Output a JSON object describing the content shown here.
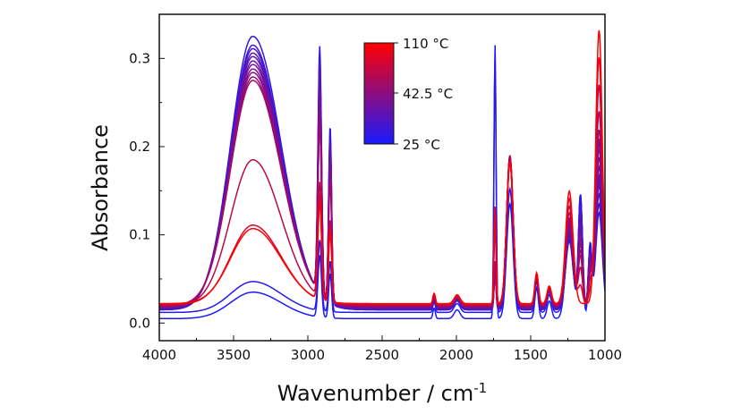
{
  "chart_data": {
    "type": "line",
    "title": "",
    "xlabel": "Wavenumber / cm",
    "xlabel_sup": "-1",
    "ylabel": "Absorbance",
    "xlim": [
      4000,
      1000
    ],
    "ylim": [
      -0.02,
      0.35
    ],
    "x_reversed": true,
    "x_ticks": [
      4000,
      3500,
      3000,
      2500,
      2000,
      1500,
      1000
    ],
    "x_tick_labels": [
      "4000",
      "3500",
      "3000",
      "2500",
      "2000",
      "1500",
      "1000"
    ],
    "y_ticks": [
      0.0,
      0.1,
      0.2,
      0.3
    ],
    "y_tick_labels": [
      "0.0",
      "0.1",
      "0.2",
      "0.3"
    ],
    "grid": false,
    "colorbar": {
      "placement": "top-center",
      "min_label": "25 °C",
      "mid_label": "42.5 °C",
      "max_label": "110 °C",
      "color_low": "#1a1aff",
      "color_high": "#ff0000"
    },
    "series": [
      {
        "temperature_fraction": 0.0,
        "oh_peak": 0.03,
        "ch_peak": 0.07,
        "co_peak": 0.31,
        "amide_peak": 0.13,
        "low_peak": 0.2,
        "baseline": 0.005
      },
      {
        "temperature_fraction": 0.05,
        "oh_peak": 0.035,
        "ch_peak": 0.08,
        "co_peak": 0.29,
        "amide_peak": 0.14,
        "low_peak": 0.15,
        "baseline": 0.012
      },
      {
        "temperature_fraction": 0.1,
        "oh_peak": 0.31,
        "ch_peak": 0.28,
        "co_peak": 0.04,
        "amide_peak": 0.17,
        "low_peak": 0.11,
        "baseline": 0.015
      },
      {
        "temperature_fraction": 0.15,
        "oh_peak": 0.3,
        "ch_peak": 0.27,
        "co_peak": 0.04,
        "amide_peak": 0.17,
        "low_peak": 0.12,
        "baseline": 0.015
      },
      {
        "temperature_fraction": 0.2,
        "oh_peak": 0.295,
        "ch_peak": 0.26,
        "co_peak": 0.04,
        "amide_peak": 0.17,
        "low_peak": 0.13,
        "baseline": 0.016
      },
      {
        "temperature_fraction": 0.25,
        "oh_peak": 0.29,
        "ch_peak": 0.25,
        "co_peak": 0.04,
        "amide_peak": 0.17,
        "low_peak": 0.14,
        "baseline": 0.016
      },
      {
        "temperature_fraction": 0.3,
        "oh_peak": 0.285,
        "ch_peak": 0.24,
        "co_peak": 0.04,
        "amide_peak": 0.17,
        "low_peak": 0.15,
        "baseline": 0.017
      },
      {
        "temperature_fraction": 0.35,
        "oh_peak": 0.28,
        "ch_peak": 0.23,
        "co_peak": 0.04,
        "amide_peak": 0.17,
        "low_peak": 0.16,
        "baseline": 0.017
      },
      {
        "temperature_fraction": 0.4,
        "oh_peak": 0.275,
        "ch_peak": 0.22,
        "co_peak": 0.04,
        "amide_peak": 0.17,
        "low_peak": 0.17,
        "baseline": 0.018
      },
      {
        "temperature_fraction": 0.45,
        "oh_peak": 0.27,
        "ch_peak": 0.21,
        "co_peak": 0.04,
        "amide_peak": 0.17,
        "low_peak": 0.18,
        "baseline": 0.018
      },
      {
        "temperature_fraction": 0.5,
        "oh_peak": 0.265,
        "ch_peak": 0.2,
        "co_peak": 0.04,
        "amide_peak": 0.17,
        "low_peak": 0.19,
        "baseline": 0.019
      },
      {
        "temperature_fraction": 0.55,
        "oh_peak": 0.26,
        "ch_peak": 0.19,
        "co_peak": 0.04,
        "amide_peak": 0.17,
        "low_peak": 0.2,
        "baseline": 0.019
      },
      {
        "temperature_fraction": 0.6,
        "oh_peak": 0.255,
        "ch_peak": 0.19,
        "co_peak": 0.05,
        "amide_peak": 0.17,
        "low_peak": 0.22,
        "baseline": 0.02
      },
      {
        "temperature_fraction": 0.7,
        "oh_peak": 0.165,
        "ch_peak": 0.13,
        "co_peak": 0.09,
        "amide_peak": 0.17,
        "low_peak": 0.25,
        "baseline": 0.02
      },
      {
        "temperature_fraction": 0.85,
        "oh_peak": 0.09,
        "ch_peak": 0.12,
        "co_peak": 0.1,
        "amide_peak": 0.16,
        "low_peak": 0.28,
        "baseline": 0.021
      },
      {
        "temperature_fraction": 1.0,
        "oh_peak": 0.085,
        "ch_peak": 0.11,
        "co_peak": 0.11,
        "amide_peak": 0.16,
        "low_peak": 0.31,
        "baseline": 0.022
      }
    ]
  }
}
